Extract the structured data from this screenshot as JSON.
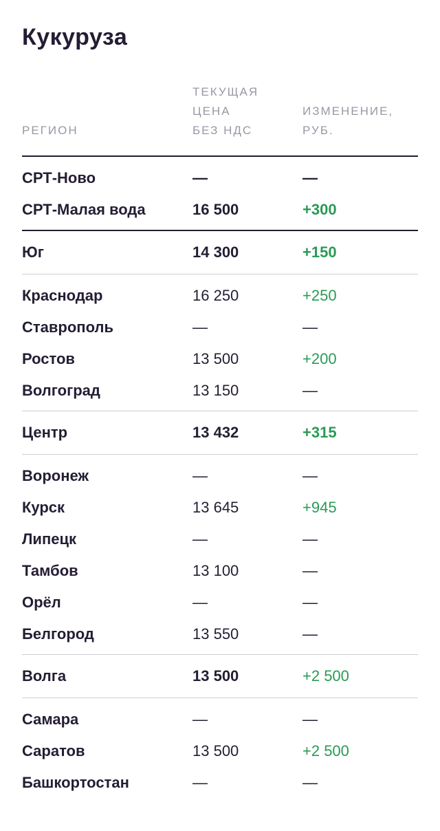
{
  "title": "Кукуруза",
  "headers": {
    "region": "РЕГИОН",
    "price": "ТЕКУЩАЯ\nЦЕНА\nБЕЗ НДС",
    "change": "ИЗМЕНЕНИЕ,\nРУБ."
  },
  "rows": [
    {
      "region": "СРТ-Ново",
      "price": "—",
      "change": "—"
    },
    {
      "region": "СРТ-Малая вода",
      "price": "16 500",
      "change": "+300"
    },
    {
      "region": "Юг",
      "price": "14 300",
      "change": "+150"
    },
    {
      "region": "Краснодар",
      "price": "16 250",
      "change": "+250"
    },
    {
      "region": "Ставрополь",
      "price": "—",
      "change": "—"
    },
    {
      "region": "Ростов",
      "price": "13 500",
      "change": "+200"
    },
    {
      "region": "Волгоград",
      "price": "13 150",
      "change": "—"
    },
    {
      "region": "Центр",
      "price": "13 432",
      "change": "+315"
    },
    {
      "region": "Воронеж",
      "price": "—",
      "change": "—"
    },
    {
      "region": "Курск",
      "price": "13 645",
      "change": "+945"
    },
    {
      "region": "Липецк",
      "price": "—",
      "change": "—"
    },
    {
      "region": "Тамбов",
      "price": "13 100",
      "change": "—"
    },
    {
      "region": "Орёл",
      "price": "—",
      "change": "—"
    },
    {
      "region": "Белгород",
      "price": "13 550",
      "change": "—"
    },
    {
      "region": "Волга",
      "price": "13 500",
      "change": "+2 500"
    },
    {
      "region": "Самара",
      "price": "—",
      "change": "—"
    },
    {
      "region": "Саратов",
      "price": "13 500",
      "change": "+2 500"
    },
    {
      "region": "Башкортостан",
      "price": "—",
      "change": "—"
    }
  ],
  "colors": {
    "text": "#241d33",
    "header": "#9a97a2",
    "positive": "#2a9a55",
    "divider": "#cfcdd4"
  }
}
